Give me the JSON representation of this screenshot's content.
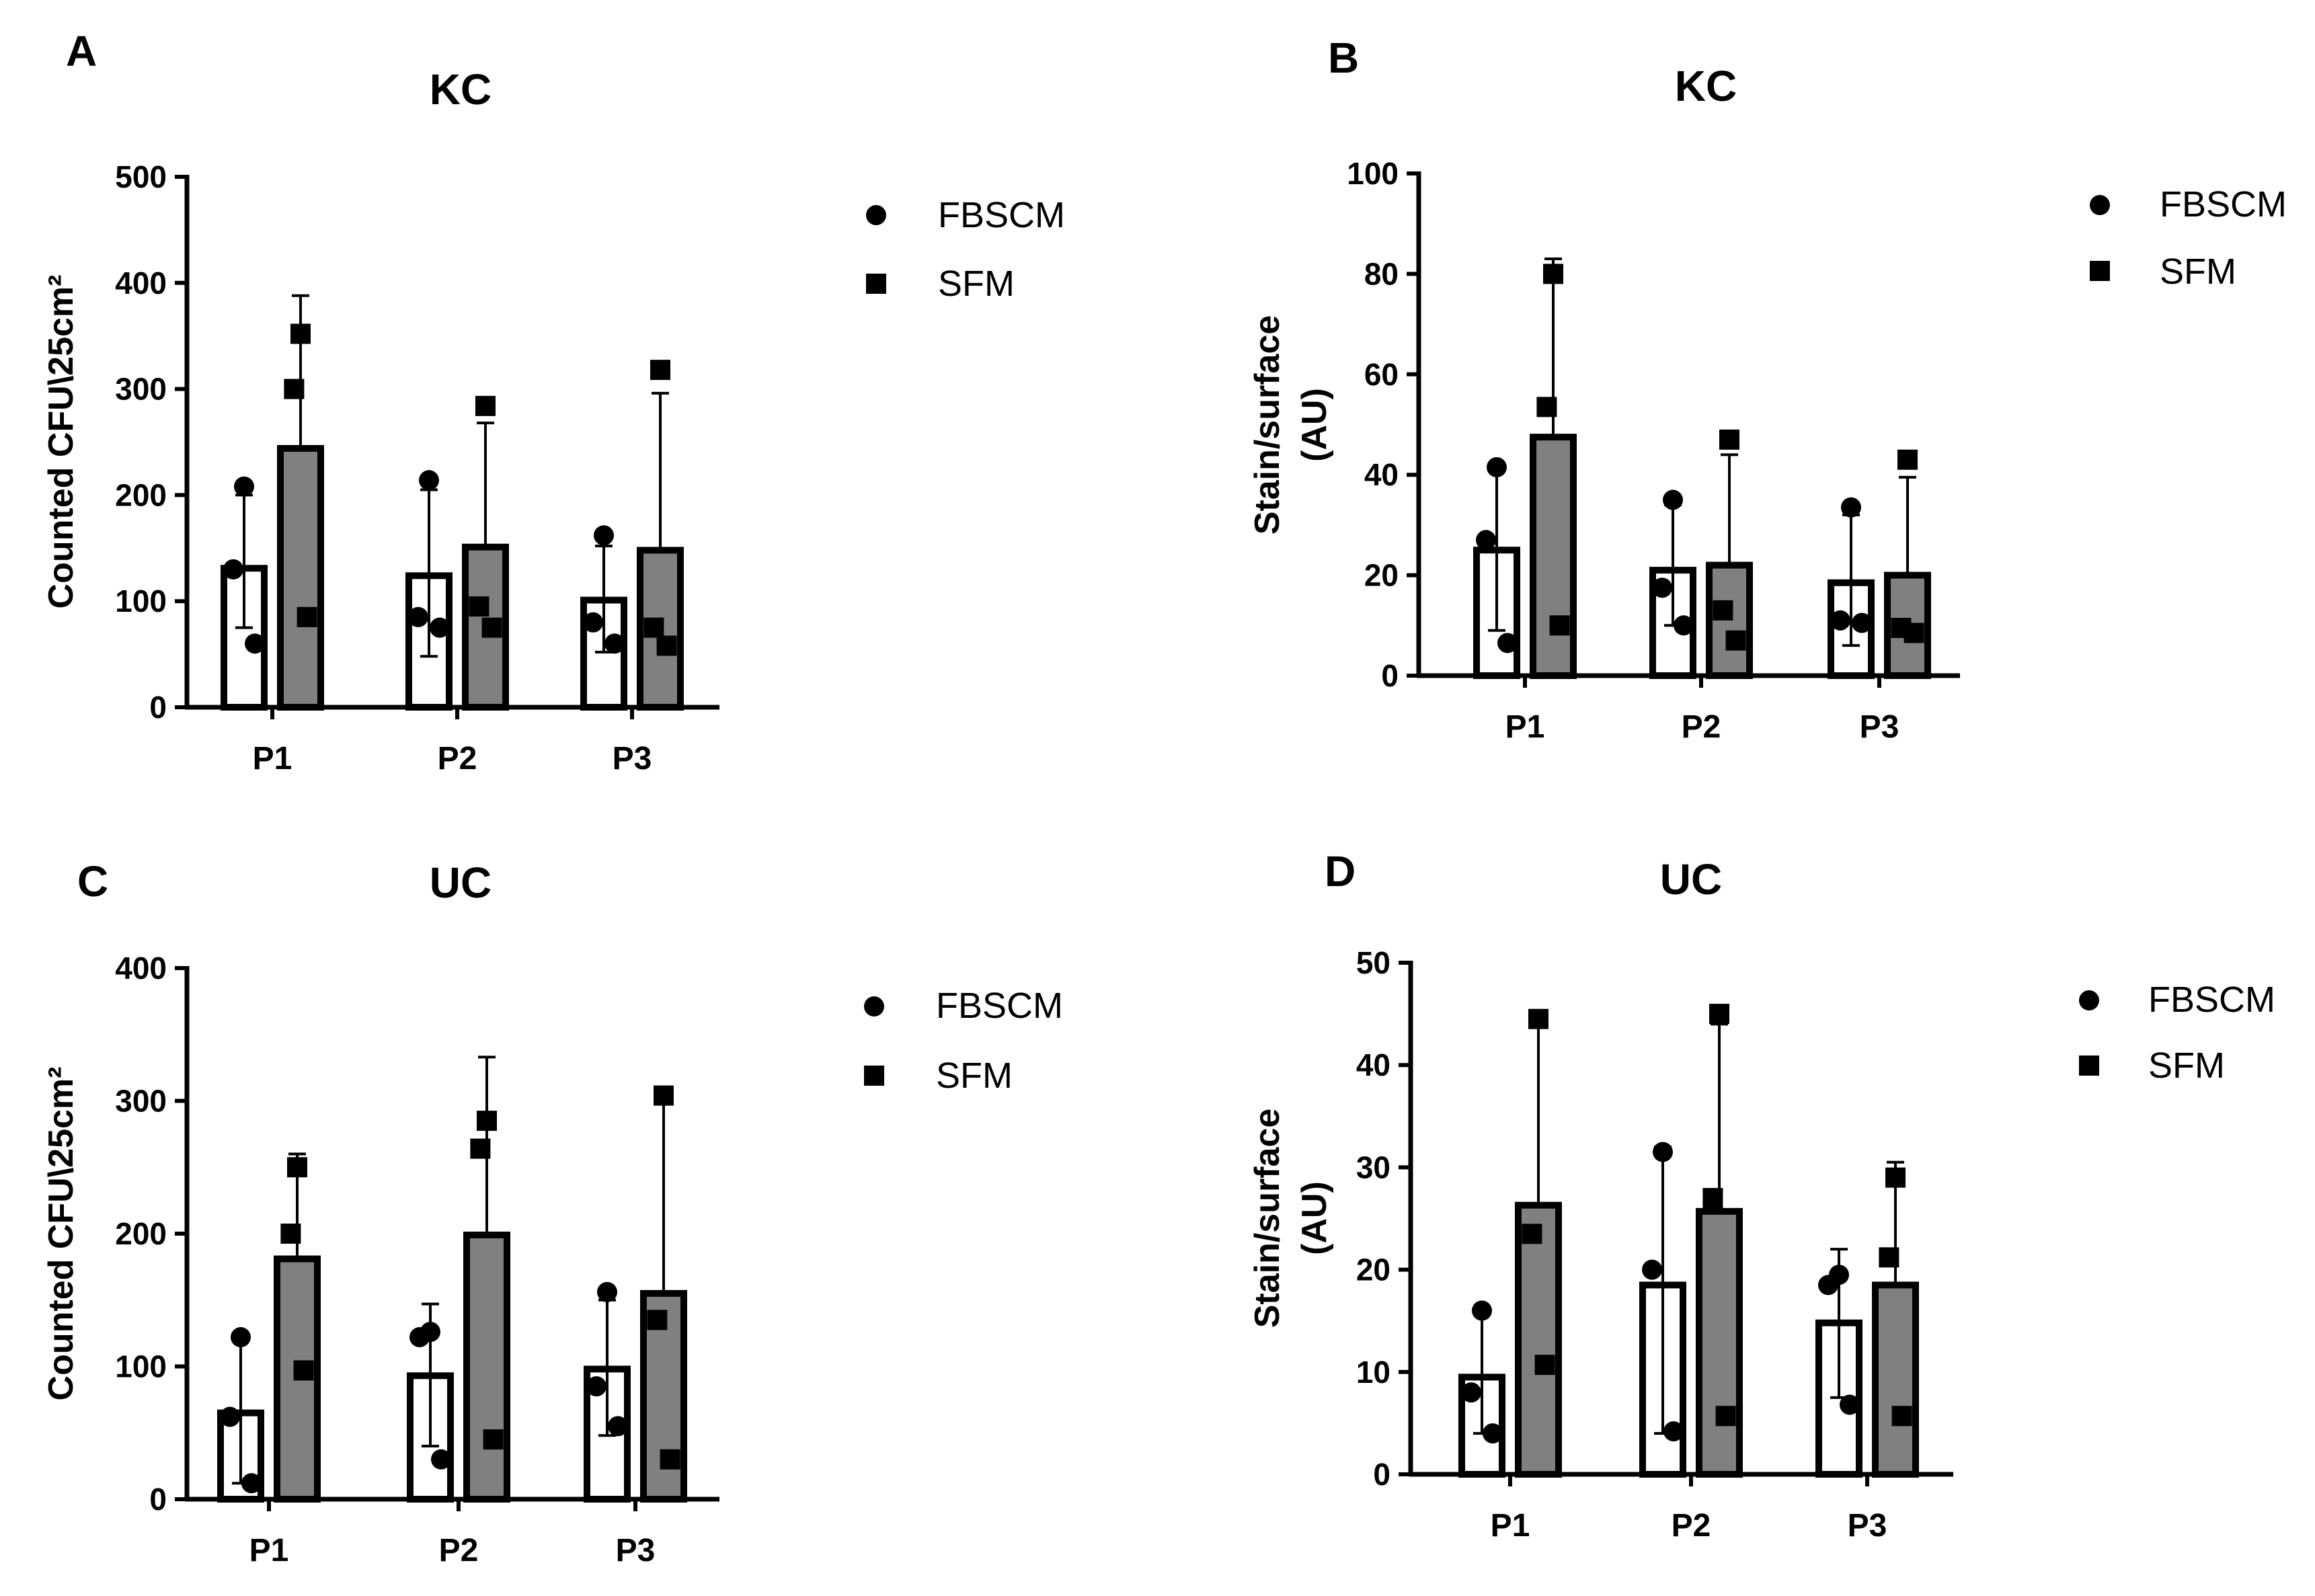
{
  "chart_data": [
    {
      "panel": "A",
      "type": "bar",
      "title": "KC",
      "ylabel": "Counted CFU\\25cm²",
      "ylabel_lines": [
        "Counted CFU\\25cm²"
      ],
      "xlabel": "",
      "ylim": [
        0,
        500
      ],
      "yticks": [
        0,
        100,
        200,
        300,
        400,
        500
      ],
      "categories": [
        "P1",
        "P2",
        "P3"
      ],
      "legend": [
        "FBSCM",
        "SFM"
      ],
      "series": [
        {
          "name": "FBSCM",
          "fill": "#ffffff",
          "marker": "circle",
          "values": [
            131,
            124,
            101
          ],
          "err_upper": [
            200,
            205,
            152
          ],
          "err_lower": [
            75,
            48,
            52
          ],
          "points": [
            [
              208,
              130,
              60
            ],
            [
              214,
              85,
              75
            ],
            [
              162,
              80,
              60
            ]
          ]
        },
        {
          "name": "SFM",
          "fill": "#808080",
          "marker": "square",
          "values": [
            244,
            151,
            148
          ],
          "err_upper": [
            388,
            268,
            296
          ],
          "err_lower": [
            102,
            38,
            20
          ],
          "points": [
            [
              352,
              300,
              85
            ],
            [
              284,
              95,
              75
            ],
            [
              318,
              75,
              58
            ]
          ]
        }
      ]
    },
    {
      "panel": "B",
      "type": "bar",
      "title": "KC",
      "ylabel": "Stain/surface (AU)",
      "ylabel_lines": [
        "Stain/surface",
        "(AU)"
      ],
      "xlabel": "",
      "ylim": [
        0,
        100
      ],
      "yticks": [
        0,
        20,
        40,
        60,
        80,
        100
      ],
      "categories": [
        "P1",
        "P2",
        "P3"
      ],
      "legend": [
        "FBSCM",
        "SFM"
      ],
      "series": [
        {
          "name": "FBSCM",
          "fill": "#ffffff",
          "marker": "circle",
          "values": [
            25,
            21,
            18.5
          ],
          "err_upper": [
            41,
            34,
            32
          ],
          "err_lower": [
            9,
            10,
            6
          ],
          "points": [
            [
              41.5,
              27,
              6.5
            ],
            [
              35,
              17.5,
              10
            ],
            [
              33.5,
              11,
              10.5
            ]
          ]
        },
        {
          "name": "SFM",
          "fill": "#808080",
          "marker": "square",
          "values": [
            47.5,
            22,
            20
          ],
          "err_upper": [
            83,
            44,
            39.5
          ],
          "err_lower": [
            12,
            0,
            0
          ],
          "points": [
            [
              80,
              53.5,
              10
            ],
            [
              47,
              13,
              7
            ],
            [
              43,
              9.5,
              8.5
            ]
          ]
        }
      ]
    },
    {
      "panel": "C",
      "type": "bar",
      "title": "UC",
      "ylabel": "Counted CFU\\25cm²",
      "ylabel_lines": [
        "Counted CFU\\25cm²"
      ],
      "xlabel": "",
      "ylim": [
        0,
        400
      ],
      "yticks": [
        0,
        100,
        200,
        300,
        400
      ],
      "categories": [
        "P1",
        "P2",
        "P3"
      ],
      "legend": [
        "FBSCM",
        "SFM"
      ],
      "series": [
        {
          "name": "FBSCM",
          "fill": "#ffffff",
          "marker": "circle",
          "values": [
            65,
            93,
            98
          ],
          "err_upper": [
            120,
            147,
            150
          ],
          "err_lower": [
            12,
            40,
            48
          ],
          "points": [
            [
              122,
              62,
              12
            ],
            [
              126,
              122,
              30
            ],
            [
              156,
              85,
              55
            ]
          ]
        },
        {
          "name": "SFM",
          "fill": "#808080",
          "marker": "square",
          "values": [
            181,
            199,
            155
          ],
          "err_upper": [
            260,
            333,
            304
          ],
          "err_lower": [
            100,
            65,
            18
          ],
          "points": [
            [
              250,
              200,
              97
            ],
            [
              285,
              264,
              45
            ],
            [
              304,
              135,
              30
            ]
          ]
        }
      ]
    },
    {
      "panel": "D",
      "type": "bar",
      "title": "UC",
      "ylabel": "Stain/surface (AU)",
      "ylabel_lines": [
        "Stain/surface",
        "(AU)"
      ],
      "xlabel": "",
      "ylim": [
        0,
        50
      ],
      "yticks": [
        0,
        10,
        20,
        30,
        40,
        50
      ],
      "categories": [
        "P1",
        "P2",
        "P3"
      ],
      "legend": [
        "FBSCM",
        "SFM"
      ],
      "series": [
        {
          "name": "FBSCM",
          "fill": "#ffffff",
          "marker": "circle",
          "values": [
            9.5,
            18.5,
            14.8
          ],
          "err_upper": [
            16,
            32,
            22
          ],
          "err_lower": [
            4,
            4,
            7.5
          ],
          "points": [
            [
              16,
              8,
              4
            ],
            [
              31.5,
              20,
              4.2
            ],
            [
              19.5,
              18.5,
              6.8
            ]
          ]
        },
        {
          "name": "SFM",
          "fill": "#808080",
          "marker": "square",
          "values": [
            26.3,
            25.7,
            18.5
          ],
          "err_upper": [
            44.5,
            44,
            30.5
          ],
          "err_lower": [
            9.5,
            6.5,
            6.5
          ],
          "points": [
            [
              44.5,
              23.5,
              10.7
            ],
            [
              45,
              27,
              5.7
            ],
            [
              29,
              21.2,
              5.7
            ]
          ]
        }
      ]
    }
  ]
}
